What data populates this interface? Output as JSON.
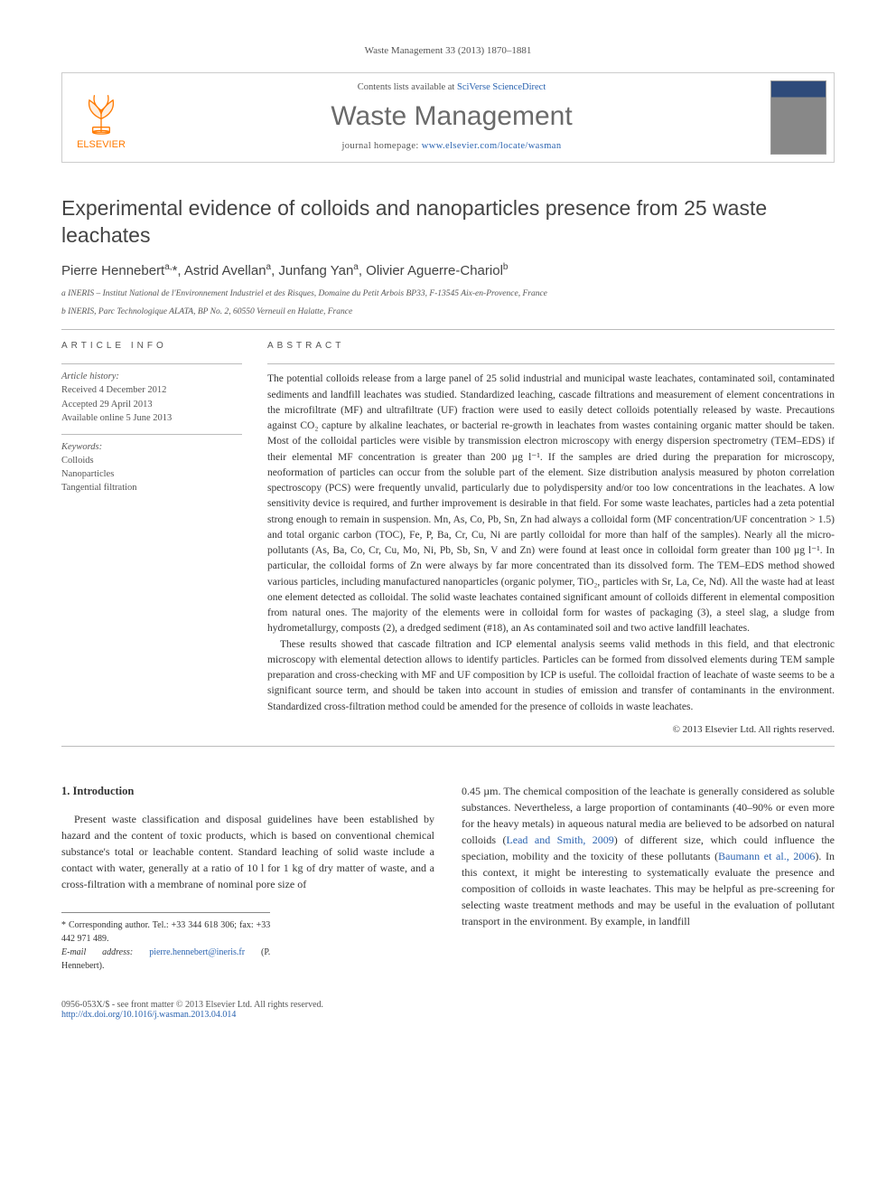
{
  "journal_ref": "Waste Management 33 (2013) 1870–1881",
  "header": {
    "contents_prefix": "Contents lists available at ",
    "contents_link": "SciVerse ScienceDirect",
    "journal_title": "Waste Management",
    "homepage_prefix": "journal homepage: ",
    "homepage_url": "www.elsevier.com/locate/wasman",
    "publisher_logo_text": "ELSEVIER",
    "logo_fill": "#ff7a00"
  },
  "article": {
    "title": "Experimental evidence of colloids and nanoparticles presence from 25 waste leachates",
    "authors_html": "Pierre Hennebert<sup>a,</sup>*, Astrid Avellan<sup>a</sup>, Junfang Yan<sup>a</sup>, Olivier Aguerre-Chariol<sup>b</sup>",
    "affiliations": [
      "a INERIS – Institut National de l'Environnement Industriel et des Risques, Domaine du Petit Arbois BP33, F-13545 Aix-en-Provence, France",
      "b INERIS, Parc Technologique ALATA, BP No. 2, 60550 Verneuil en Halatte, France"
    ]
  },
  "info": {
    "head": "ARTICLE INFO",
    "history_label": "Article history:",
    "history": [
      "Received 4 December 2012",
      "Accepted 29 April 2013",
      "Available online 5 June 2013"
    ],
    "kw_label": "Keywords:",
    "keywords": [
      "Colloids",
      "Nanoparticles",
      "Tangential filtration"
    ]
  },
  "abstract": {
    "head": "ABSTRACT",
    "p1": "The potential colloids release from a large panel of 25 solid industrial and municipal waste leachates, contaminated soil, contaminated sediments and landfill leachates was studied. Standardized leaching, cascade filtrations and measurement of element concentrations in the microfiltrate (MF) and ultrafiltrate (UF) fraction were used to easily detect colloids potentially released by waste. Precautions against CO₂ capture by alkaline leachates, or bacterial re-growth in leachates from wastes containing organic matter should be taken. Most of the colloidal particles were visible by transmission electron microscopy with energy dispersion spectrometry (TEM–EDS) if their elemental MF concentration is greater than 200 µg l⁻¹. If the samples are dried during the preparation for microscopy, neoformation of particles can occur from the soluble part of the element. Size distribution analysis measured by photon correlation spectroscopy (PCS) were frequently unvalid, particularly due to polydispersity and/or too low concentrations in the leachates. A low sensitivity device is required, and further improvement is desirable in that field. For some waste leachates, particles had a zeta potential strong enough to remain in suspension. Mn, As, Co, Pb, Sn, Zn had always a colloidal form (MF concentration/UF concentration > 1.5) and total organic carbon (TOC), Fe, P, Ba, Cr, Cu, Ni are partly colloidal for more than half of the samples). Nearly all the micro-pollutants (As, Ba, Co, Cr, Cu, Mo, Ni, Pb, Sb, Sn, V and Zn) were found at least once in colloidal form greater than 100 µg l⁻¹. In particular, the colloidal forms of Zn were always by far more concentrated than its dissolved form. The TEM–EDS method showed various particles, including manufactured nanoparticles (organic polymer, TiO₂, particles with Sr, La, Ce, Nd). All the waste had at least one element detected as colloidal. The solid waste leachates contained significant amount of colloids different in elemental composition from natural ones. The majority of the elements were in colloidal form for wastes of packaging (3), a steel slag, a sludge from hydrometallurgy, composts (2), a dredged sediment (#18), an As contaminated soil and two active landfill leachates.",
    "p2": "These results showed that cascade filtration and ICP elemental analysis seems valid methods in this field, and that electronic microscopy with elemental detection allows to identify particles. Particles can be formed from dissolved elements during TEM sample preparation and cross-checking with MF and UF composition by ICP is useful. The colloidal fraction of leachate of waste seems to be a significant source term, and should be taken into account in studies of emission and transfer of contaminants in the environment. Standardized cross-filtration method could be amended for the presence of colloids in waste leachates.",
    "copyright": "© 2013 Elsevier Ltd. All rights reserved."
  },
  "body": {
    "section_heading": "1. Introduction",
    "left_p": "Present waste classification and disposal guidelines have been established by hazard and the content of toxic products, which is based on conventional chemical substance's total or leachable content. Standard leaching of solid waste include a contact with water, generally at a ratio of 10 l for 1 kg of dry matter of waste, and a cross-filtration with a membrane of nominal pore size of",
    "right_p_pre": "0.45 µm. The chemical composition of the leachate is generally considered as soluble substances. Nevertheless, a large proportion of contaminants (40–90% or even more for the heavy metals) in aqueous natural media are believed to be adsorbed on natural colloids (",
    "right_ref1": "Lead and Smith, 2009",
    "right_p_mid": ") of different size, which could influence the speciation, mobility and the toxicity of these pollutants (",
    "right_ref2": "Baumann et al., 2006",
    "right_p_post": "). In this context, it might be interesting to systematically evaluate the presence and composition of colloids in waste leachates. This may be helpful as pre-screening for selecting waste treatment methods and may be useful in the evaluation of pollutant transport in the environment. By example, in landfill"
  },
  "corr": {
    "line1_pre": "* Corresponding author. Tel.: +33 344 618 306; fax: +33 442 971 489.",
    "email_label": "E-mail address:",
    "email": "pierre.hennebert@ineris.fr",
    "email_post": "(P. Hennebert)."
  },
  "footer": {
    "left": "0956-053X/$ - see front matter © 2013 Elsevier Ltd. All rights reserved.",
    "doi": "http://dx.doi.org/10.1016/j.wasman.2013.04.014"
  },
  "colors": {
    "link": "#2a63b0",
    "logo": "#ff7a00",
    "text": "#333333",
    "muted": "#555555",
    "rule": "#bbbbbb"
  }
}
